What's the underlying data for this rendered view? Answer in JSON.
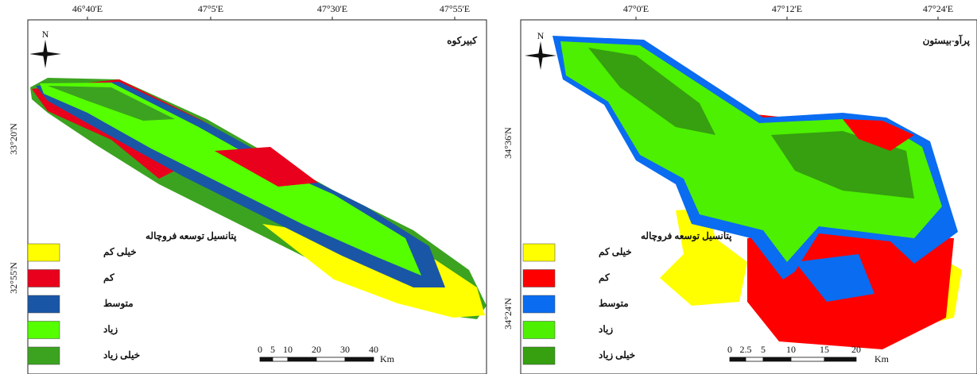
{
  "panels": [
    {
      "title": "کبیرکوه",
      "north": "N",
      "top_labels": [
        "46°40'E",
        "47°5'E",
        "47°30'E",
        "47°55'E"
      ],
      "left_labels": [
        "33°20'N",
        "32°55'N"
      ],
      "legend": {
        "title": "پتانسیل توسعه فروچاله",
        "items": [
          {
            "label": "خیلی کم",
            "color": "#ffff00"
          },
          {
            "label": "کم",
            "color": "#e8001c"
          },
          {
            "label": "متوسط",
            "color": "#1a56a6"
          },
          {
            "label": "زیاد",
            "color": "#55ff00"
          },
          {
            "label": "خیلی زیاد",
            "color": "#3ca320"
          }
        ]
      },
      "scale": {
        "labels": [
          "0",
          "5",
          "10",
          "20",
          "30",
          "40"
        ],
        "unit": "Km"
      }
    },
    {
      "title": "پرآو-بیستون",
      "north": "N",
      "top_labels": [
        "47°0'E",
        "47°12'E",
        "47°24'E"
      ],
      "left_labels": [
        "34°36'N",
        "34°24'N"
      ],
      "legend": {
        "title": "پتانسیل توسعه فروچاله",
        "items": [
          {
            "label": "خیلی کم",
            "color": "#ffff00"
          },
          {
            "label": "کم",
            "color": "#ff0000"
          },
          {
            "label": "متوسط",
            "color": "#0a6cf0"
          },
          {
            "label": "زیاد",
            "color": "#4cf000"
          },
          {
            "label": "خیلی زیاد",
            "color": "#36a010"
          }
        ]
      },
      "scale": {
        "labels": [
          "0",
          "2.5",
          "5",
          "10",
          "15",
          "20"
        ],
        "unit": "Km"
      }
    }
  ]
}
